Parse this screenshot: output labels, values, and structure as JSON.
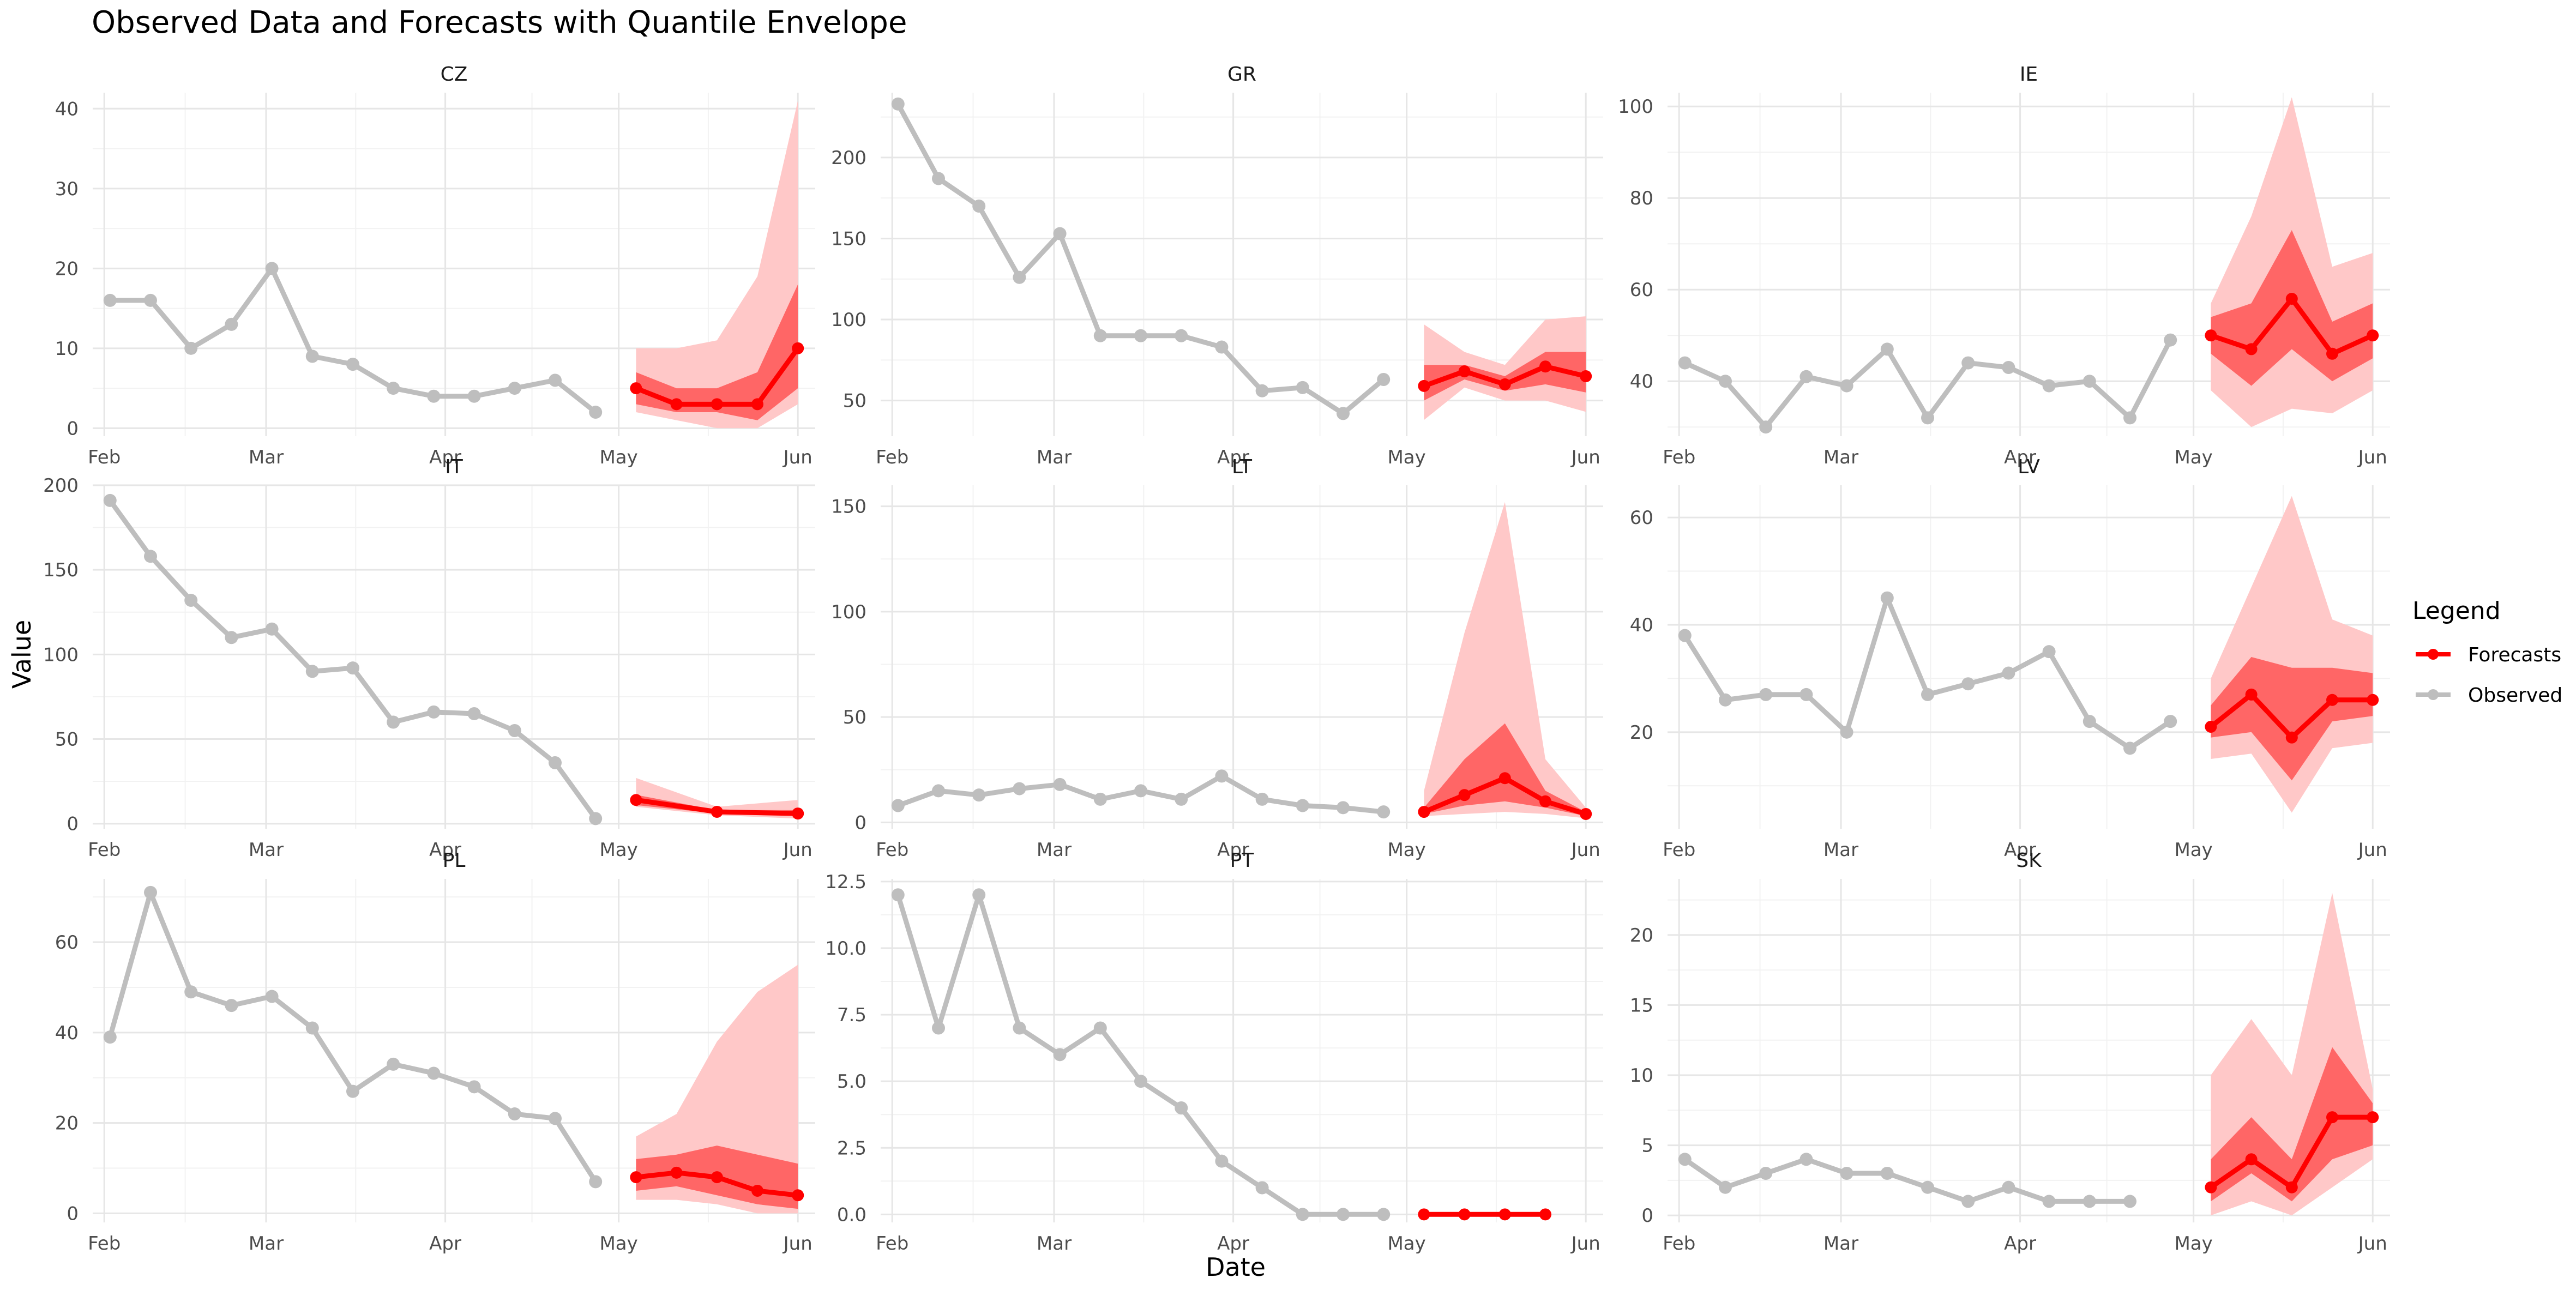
{
  "title": "Observed Data and Forecasts with Quantile Envelope",
  "xlabel": "Date",
  "ylabel": "Value",
  "legend": {
    "title": "Legend",
    "placement": "right",
    "items": [
      {
        "label": "Forecasts",
        "color": "#ff0000"
      },
      {
        "label": "Observed",
        "color": "#bebebe"
      }
    ]
  },
  "colors": {
    "observed": "#bebebe",
    "forecast": "#ff0000",
    "inner_band": "#ff6666",
    "outer_band": "#ffc8c8",
    "grid_major": "#e6e6e6",
    "grid_minor": "#f2f2f2",
    "text": "#4d4d4d"
  },
  "chart_data": {
    "type": "line",
    "grid": true,
    "x_ticks": [
      {
        "date": "2023-02-01",
        "label": "Feb"
      },
      {
        "date": "2023-03-01",
        "label": "Mar"
      },
      {
        "date": "2023-04-01",
        "label": "Apr"
      },
      {
        "date": "2023-05-01",
        "label": "May"
      },
      {
        "date": "2023-06-01",
        "label": "Jun"
      }
    ],
    "panels": [
      {
        "name": "CZ",
        "ylim": [
          -1,
          42
        ],
        "yticks": [
          0,
          10,
          20,
          30,
          40
        ],
        "observed": {
          "x": [
            "2023-02-02",
            "2023-02-09",
            "2023-02-16",
            "2023-02-23",
            "2023-03-02",
            "2023-03-09",
            "2023-03-16",
            "2023-03-23",
            "2023-03-30",
            "2023-04-06",
            "2023-04-13",
            "2023-04-20",
            "2023-04-27"
          ],
          "y": [
            16,
            16,
            10,
            13,
            20,
            9,
            8,
            5,
            4,
            4,
            5,
            6,
            2
          ]
        },
        "forecast": {
          "x": [
            "2023-05-04",
            "2023-05-11",
            "2023-05-18",
            "2023-05-25",
            "2023-06-01"
          ],
          "median": [
            5,
            3,
            3,
            3,
            10
          ],
          "inner_lower": [
            3,
            2,
            2,
            1,
            5
          ],
          "inner_upper": [
            7,
            5,
            5,
            7,
            18
          ],
          "outer_lower": [
            2,
            1,
            0,
            0,
            3
          ],
          "outer_upper": [
            10,
            10,
            11,
            19,
            41
          ]
        }
      },
      {
        "name": "GR",
        "ylim": [
          28,
          240
        ],
        "yticks": [
          50,
          100,
          150,
          200
        ],
        "observed": {
          "x": [
            "2023-02-02",
            "2023-02-09",
            "2023-02-16",
            "2023-02-23",
            "2023-03-02",
            "2023-03-09",
            "2023-03-16",
            "2023-03-23",
            "2023-03-30",
            "2023-04-06",
            "2023-04-13",
            "2023-04-20",
            "2023-04-27"
          ],
          "y": [
            233,
            187,
            170,
            126,
            153,
            90,
            90,
            90,
            83,
            56,
            58,
            42,
            63
          ]
        },
        "forecast": {
          "x": [
            "2023-05-04",
            "2023-05-11",
            "2023-05-18",
            "2023-05-25",
            "2023-06-01"
          ],
          "median": [
            59,
            68,
            60,
            71,
            65
          ],
          "inner_lower": [
            50,
            63,
            56,
            60,
            55
          ],
          "inner_upper": [
            72,
            72,
            65,
            80,
            80
          ],
          "outer_lower": [
            38,
            58,
            50,
            50,
            43
          ],
          "outer_upper": [
            97,
            80,
            72,
            100,
            102
          ]
        }
      },
      {
        "name": "IE",
        "ylim": [
          28,
          103
        ],
        "yticks": [
          40,
          60,
          80,
          100
        ],
        "observed": {
          "x": [
            "2023-02-02",
            "2023-02-09",
            "2023-02-16",
            "2023-02-23",
            "2023-03-02",
            "2023-03-09",
            "2023-03-16",
            "2023-03-23",
            "2023-03-30",
            "2023-04-06",
            "2023-04-13",
            "2023-04-20",
            "2023-04-27"
          ],
          "y": [
            44,
            40,
            30,
            41,
            39,
            47,
            32,
            44,
            43,
            39,
            40,
            32,
            49
          ]
        },
        "forecast": {
          "x": [
            "2023-05-04",
            "2023-05-11",
            "2023-05-18",
            "2023-05-25",
            "2023-06-01"
          ],
          "median": [
            50,
            47,
            58,
            46,
            50
          ],
          "inner_lower": [
            46,
            39,
            47,
            40,
            45
          ],
          "inner_upper": [
            54,
            57,
            73,
            53,
            57
          ],
          "outer_lower": [
            38,
            30,
            34,
            33,
            38
          ],
          "outer_upper": [
            57,
            76,
            102,
            65,
            68
          ]
        }
      },
      {
        "name": "IT",
        "ylim": [
          -3,
          200
        ],
        "yticks": [
          0,
          50,
          100,
          150,
          200
        ],
        "observed": {
          "x": [
            "2023-02-02",
            "2023-02-09",
            "2023-02-16",
            "2023-02-23",
            "2023-03-02",
            "2023-03-09",
            "2023-03-16",
            "2023-03-23",
            "2023-03-30",
            "2023-04-06",
            "2023-04-13",
            "2023-04-20",
            "2023-04-27"
          ],
          "y": [
            191,
            158,
            132,
            110,
            115,
            90,
            92,
            60,
            66,
            65,
            55,
            36,
            3
          ]
        },
        "forecast": {
          "x": [
            "2023-05-04",
            "2023-05-18",
            "2023-06-01"
          ],
          "median": [
            14,
            7,
            6
          ],
          "inner_lower": [
            11,
            6,
            5
          ],
          "inner_upper": [
            17,
            8,
            8
          ],
          "outer_lower": [
            10,
            5,
            3
          ],
          "outer_upper": [
            27,
            10,
            14
          ]
        }
      },
      {
        "name": "LT",
        "ylim": [
          -3,
          160
        ],
        "yticks": [
          0,
          50,
          100,
          150
        ],
        "observed": {
          "x": [
            "2023-02-02",
            "2023-02-09",
            "2023-02-16",
            "2023-02-23",
            "2023-03-02",
            "2023-03-09",
            "2023-03-16",
            "2023-03-23",
            "2023-03-30",
            "2023-04-06",
            "2023-04-13",
            "2023-04-20",
            "2023-04-27"
          ],
          "y": [
            8,
            15,
            13,
            16,
            18,
            11,
            15,
            11,
            22,
            11,
            8,
            7,
            5
          ]
        },
        "forecast": {
          "x": [
            "2023-05-04",
            "2023-05-11",
            "2023-05-18",
            "2023-05-25",
            "2023-06-01"
          ],
          "median": [
            5,
            13,
            21,
            10,
            4
          ],
          "inner_lower": [
            4,
            8,
            10,
            7,
            3
          ],
          "inner_upper": [
            7,
            30,
            47,
            15,
            5
          ],
          "outer_lower": [
            3,
            4,
            5,
            4,
            2
          ],
          "outer_upper": [
            15,
            90,
            152,
            30,
            7
          ]
        }
      },
      {
        "name": "LV",
        "ylim": [
          2,
          66
        ],
        "yticks": [
          20,
          40,
          60
        ],
        "observed": {
          "x": [
            "2023-02-02",
            "2023-02-09",
            "2023-02-16",
            "2023-02-23",
            "2023-03-02",
            "2023-03-09",
            "2023-03-16",
            "2023-03-23",
            "2023-03-30",
            "2023-04-06",
            "2023-04-13",
            "2023-04-20",
            "2023-04-27"
          ],
          "y": [
            38,
            26,
            27,
            27,
            20,
            45,
            27,
            29,
            31,
            35,
            22,
            17,
            22
          ]
        },
        "forecast": {
          "x": [
            "2023-05-04",
            "2023-05-11",
            "2023-05-18",
            "2023-05-25",
            "2023-06-01"
          ],
          "median": [
            21,
            27,
            19,
            26,
            26
          ],
          "inner_lower": [
            19,
            20,
            11,
            22,
            23
          ],
          "inner_upper": [
            25,
            34,
            32,
            32,
            31
          ],
          "outer_lower": [
            15,
            16,
            5,
            17,
            18
          ],
          "outer_upper": [
            30,
            47,
            64,
            41,
            38
          ]
        }
      },
      {
        "name": "PL",
        "ylim": [
          -2,
          74
        ],
        "yticks": [
          0,
          20,
          40,
          60
        ],
        "observed": {
          "x": [
            "2023-02-02",
            "2023-02-09",
            "2023-02-16",
            "2023-02-23",
            "2023-03-02",
            "2023-03-09",
            "2023-03-16",
            "2023-03-23",
            "2023-03-30",
            "2023-04-06",
            "2023-04-13",
            "2023-04-20",
            "2023-04-27"
          ],
          "y": [
            39,
            71,
            49,
            46,
            48,
            41,
            27,
            33,
            31,
            28,
            22,
            21,
            7
          ]
        },
        "forecast": {
          "x": [
            "2023-05-04",
            "2023-05-11",
            "2023-05-18",
            "2023-05-25",
            "2023-06-01"
          ],
          "median": [
            8,
            9,
            8,
            5,
            4
          ],
          "inner_lower": [
            5,
            6,
            4,
            2,
            1
          ],
          "inner_upper": [
            12,
            13,
            15,
            13,
            11
          ],
          "outer_lower": [
            3,
            3,
            2,
            0,
            0
          ],
          "outer_upper": [
            17,
            22,
            38,
            49,
            55
          ]
        }
      },
      {
        "name": "PT",
        "ylim": [
          -0.3,
          12.6
        ],
        "yticks": [
          0.0,
          2.5,
          5.0,
          7.5,
          10.0,
          12.5
        ],
        "ytick_labels": [
          "0.0",
          "2.5",
          "5.0",
          "7.5",
          "10.0",
          "12.5"
        ],
        "observed": {
          "x": [
            "2023-02-02",
            "2023-02-09",
            "2023-02-16",
            "2023-02-23",
            "2023-03-02",
            "2023-03-09",
            "2023-03-16",
            "2023-03-23",
            "2023-03-30",
            "2023-04-06",
            "2023-04-13",
            "2023-04-20",
            "2023-04-27"
          ],
          "y": [
            12,
            7,
            12,
            7,
            6,
            7,
            5,
            4,
            2,
            1,
            0,
            0,
            0
          ]
        },
        "forecast": {
          "x": [
            "2023-05-04",
            "2023-05-11",
            "2023-05-18",
            "2023-05-25"
          ],
          "median": [
            0,
            0,
            0,
            0
          ],
          "inner_lower": [
            0,
            0,
            0,
            0
          ],
          "inner_upper": [
            0,
            0,
            0,
            0
          ],
          "outer_lower": [
            0,
            0,
            0,
            0
          ],
          "outer_upper": [
            0,
            0,
            0,
            0
          ]
        }
      },
      {
        "name": "SK",
        "ylim": [
          -0.5,
          24
        ],
        "yticks": [
          0,
          5,
          10,
          15,
          20
        ],
        "observed": {
          "x": [
            "2023-02-02",
            "2023-02-09",
            "2023-02-16",
            "2023-02-23",
            "2023-03-02",
            "2023-03-09",
            "2023-03-16",
            "2023-03-23",
            "2023-03-30",
            "2023-04-06",
            "2023-04-13",
            "2023-04-20"
          ],
          "y": [
            4,
            2,
            3,
            4,
            3,
            3,
            2,
            1,
            2,
            1,
            1,
            1
          ]
        },
        "forecast": {
          "x": [
            "2023-05-04",
            "2023-05-11",
            "2023-05-18",
            "2023-05-25",
            "2023-06-01"
          ],
          "median": [
            2,
            4,
            2,
            7,
            7
          ],
          "inner_lower": [
            1,
            3,
            1,
            4,
            5
          ],
          "inner_upper": [
            4,
            7,
            4,
            12,
            8
          ],
          "outer_lower": [
            0,
            1,
            0,
            2,
            4
          ],
          "outer_upper": [
            10,
            14,
            10,
            23,
            9
          ]
        }
      }
    ]
  }
}
